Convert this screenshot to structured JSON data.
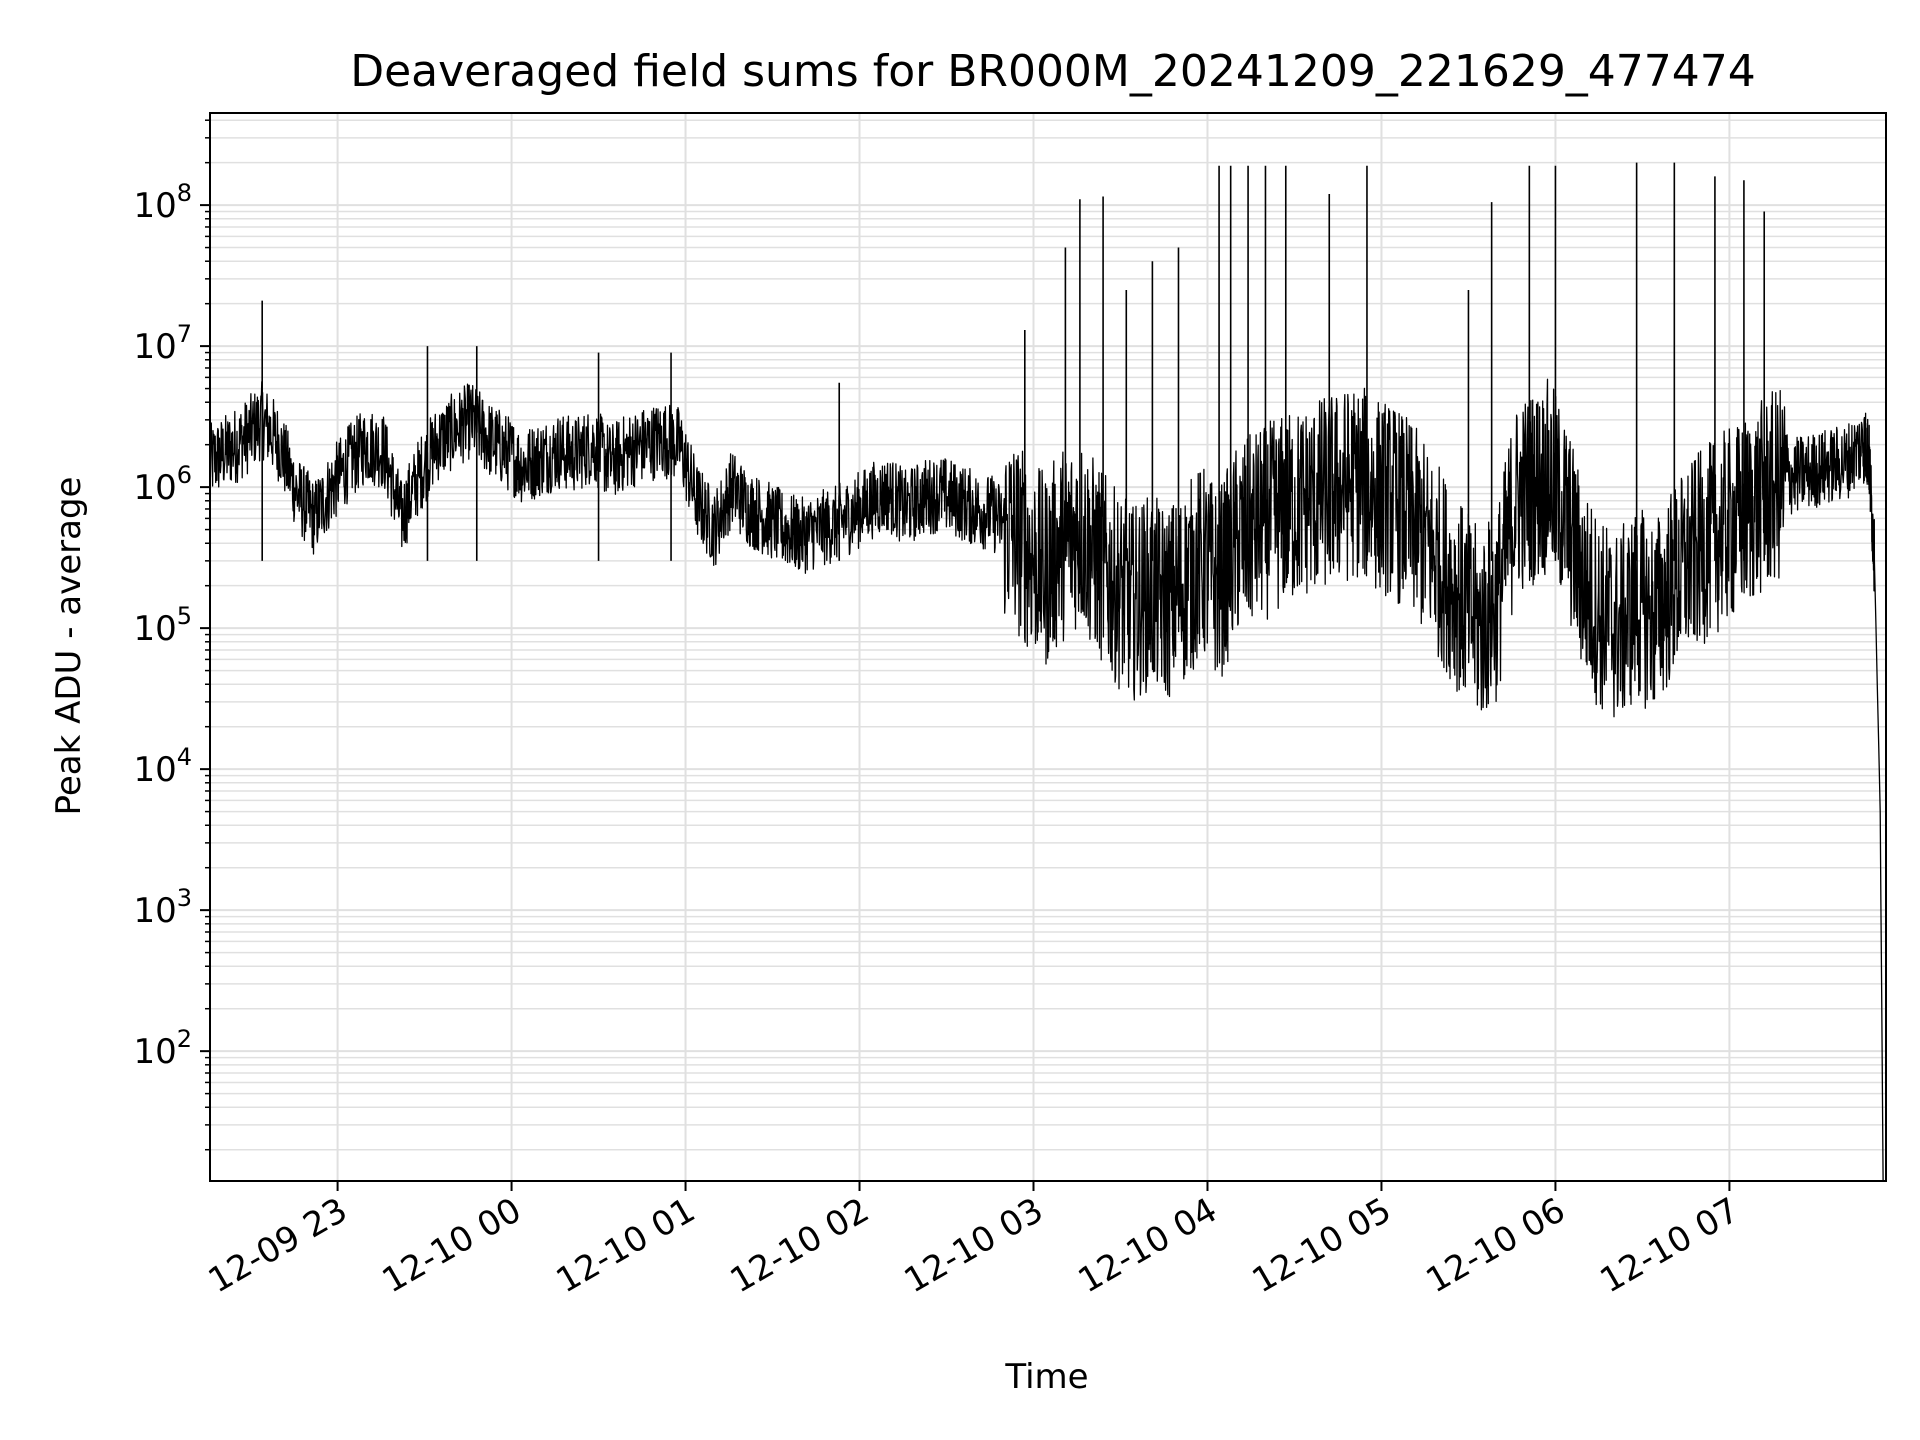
{
  "chart_data": {
    "type": "line",
    "title": "Deaveraged field sums for BR000M_20241209_221629_477474",
    "xlabel": "Time",
    "ylabel": "Peak ADU - average",
    "yscale": "log",
    "ylim": [
      12,
      450000000
    ],
    "xlim": [
      "2024-12-09 22:16",
      "2024-12-10 07:54"
    ],
    "grid": true,
    "line_color": "#000000",
    "grid_color": "#e0e0e0",
    "x_ticks": [
      {
        "time": "2024-12-09 23:00",
        "label": "12-09 23"
      },
      {
        "time": "2024-12-10 00:00",
        "label": "12-10 00"
      },
      {
        "time": "2024-12-10 01:00",
        "label": "12-10 01"
      },
      {
        "time": "2024-12-10 02:00",
        "label": "12-10 02"
      },
      {
        "time": "2024-12-10 03:00",
        "label": "12-10 03"
      },
      {
        "time": "2024-12-10 04:00",
        "label": "12-10 04"
      },
      {
        "time": "2024-12-10 05:00",
        "label": "12-10 05"
      },
      {
        "time": "2024-12-10 06:00",
        "label": "12-10 06"
      },
      {
        "time": "2024-12-10 07:00",
        "label": "12-10 07"
      }
    ],
    "y_ticks": [
      {
        "value": 100,
        "base": "10",
        "exp": "2"
      },
      {
        "value": 1000,
        "base": "10",
        "exp": "3"
      },
      {
        "value": 10000,
        "base": "10",
        "exp": "4"
      },
      {
        "value": 100000,
        "base": "10",
        "exp": "5"
      },
      {
        "value": 1000000,
        "base": "10",
        "exp": "6"
      },
      {
        "value": 10000000,
        "base": "10",
        "exp": "7"
      },
      {
        "value": 100000000,
        "base": "10",
        "exp": "8"
      }
    ],
    "series": [
      {
        "x": [
          "2024-12-09 22:16",
          "2024-12-09 22:22",
          "2024-12-09 22:28",
          "2024-12-09 22:34",
          "2024-12-09 22:40",
          "2024-12-09 22:46",
          "2024-12-09 22:52",
          "2024-12-09 22:58",
          "2024-12-09 23:04",
          "2024-12-09 23:10",
          "2024-12-09 23:16",
          "2024-12-09 23:22",
          "2024-12-09 23:28",
          "2024-12-09 23:34",
          "2024-12-09 23:40",
          "2024-12-09 23:46",
          "2024-12-09 23:52",
          "2024-12-09 23:58",
          "2024-12-10 00:04",
          "2024-12-10 00:10",
          "2024-12-10 00:16",
          "2024-12-10 00:22",
          "2024-12-10 00:28",
          "2024-12-10 00:34",
          "2024-12-10 00:40",
          "2024-12-10 00:46",
          "2024-12-10 00:52",
          "2024-12-10 00:58",
          "2024-12-10 01:04",
          "2024-12-10 01:10",
          "2024-12-10 01:16",
          "2024-12-10 01:22",
          "2024-12-10 01:28",
          "2024-12-10 01:34",
          "2024-12-10 01:40",
          "2024-12-10 01:46",
          "2024-12-10 01:52",
          "2024-12-10 01:58",
          "2024-12-10 02:04",
          "2024-12-10 02:10",
          "2024-12-10 02:16",
          "2024-12-10 02:22",
          "2024-12-10 02:28",
          "2024-12-10 02:34",
          "2024-12-10 02:40",
          "2024-12-10 02:46",
          "2024-12-10 02:52",
          "2024-12-10 02:58",
          "2024-12-10 03:04",
          "2024-12-10 03:10",
          "2024-12-10 03:16",
          "2024-12-10 03:22",
          "2024-12-10 03:28",
          "2024-12-10 03:34",
          "2024-12-10 03:40",
          "2024-12-10 03:46",
          "2024-12-10 03:52",
          "2024-12-10 03:58",
          "2024-12-10 04:04",
          "2024-12-10 04:10",
          "2024-12-10 04:16",
          "2024-12-10 04:22",
          "2024-12-10 04:28",
          "2024-12-10 04:34",
          "2024-12-10 04:40",
          "2024-12-10 04:46",
          "2024-12-10 04:52",
          "2024-12-10 04:58",
          "2024-12-10 05:04",
          "2024-12-10 05:10",
          "2024-12-10 05:16",
          "2024-12-10 05:22",
          "2024-12-10 05:28",
          "2024-12-10 05:34",
          "2024-12-10 05:40",
          "2024-12-10 05:46",
          "2024-12-10 05:52",
          "2024-12-10 05:58",
          "2024-12-10 06:04",
          "2024-12-10 06:10",
          "2024-12-10 06:16",
          "2024-12-10 06:22",
          "2024-12-10 06:28",
          "2024-12-10 06:34",
          "2024-12-10 06:40",
          "2024-12-10 06:46",
          "2024-12-10 06:52",
          "2024-12-10 06:58",
          "2024-12-10 07:04",
          "2024-12-10 07:10",
          "2024-12-10 07:16",
          "2024-12-10 07:22",
          "2024-12-10 07:28",
          "2024-12-10 07:34",
          "2024-12-10 07:40",
          "2024-12-10 07:46",
          "2024-12-10 07:48",
          "2024-12-10 07:50",
          "2024-12-10 07:52",
          "2024-12-10 07:53"
        ],
        "y": [
          1500000,
          1800000,
          2200000,
          3000000,
          2000000,
          900000,
          600000,
          1000000,
          1500000,
          2000000,
          1800000,
          600000,
          1200000,
          2000000,
          2500000,
          3000000,
          2200000,
          1800000,
          1400000,
          1600000,
          1800000,
          1700000,
          2000000,
          1500000,
          1800000,
          2000000,
          2200000,
          2000000,
          800000,
          500000,
          1000000,
          700000,
          600000,
          500000,
          450000,
          500000,
          550000,
          650000,
          800000,
          900000,
          700000,
          850000,
          900000,
          800000,
          700000,
          650000,
          500000,
          350000,
          250000,
          400000,
          500000,
          300000,
          200000,
          150000,
          180000,
          150000,
          200000,
          300000,
          200000,
          400000,
          500000,
          600000,
          700000,
          800000,
          900000,
          1000000,
          1100000,
          900000,
          800000,
          600000,
          400000,
          250000,
          150000,
          100000,
          150000,
          800000,
          1000000,
          1200000,
          600000,
          200000,
          120000,
          100000,
          150000,
          120000,
          200000,
          300000,
          400000,
          500000,
          600000,
          800000,
          1000000,
          1200000,
          1300000,
          1400000,
          1500000,
          2000000,
          1800000,
          300000,
          5000,
          12
        ]
      }
    ],
    "spikes": [
      {
        "time": "2024-12-09 22:34",
        "value": 21000000
      },
      {
        "time": "2024-12-09 23:31",
        "value": 10000000
      },
      {
        "time": "2024-12-09 23:48",
        "value": 10000000
      },
      {
        "time": "2024-12-10 00:30",
        "value": 9000000
      },
      {
        "time": "2024-12-10 00:55",
        "value": 9000000
      },
      {
        "time": "2024-12-10 01:53",
        "value": 5500000
      },
      {
        "time": "2024-12-10 02:57",
        "value": 13000000
      },
      {
        "time": "2024-12-10 03:11",
        "value": 50000000
      },
      {
        "time": "2024-12-10 03:16",
        "value": 110000000
      },
      {
        "time": "2024-12-10 03:24",
        "value": 115000000
      },
      {
        "time": "2024-12-10 03:32",
        "value": 25000000
      },
      {
        "time": "2024-12-10 03:41",
        "value": 40000000
      },
      {
        "time": "2024-12-10 03:50",
        "value": 50000000
      },
      {
        "time": "2024-12-10 04:04",
        "value": 190000000
      },
      {
        "time": "2024-12-10 04:08",
        "value": 190000000
      },
      {
        "time": "2024-12-10 04:14",
        "value": 190000000
      },
      {
        "time": "2024-12-10 04:20",
        "value": 190000000
      },
      {
        "time": "2024-12-10 04:27",
        "value": 190000000
      },
      {
        "time": "2024-12-10 04:42",
        "value": 120000000
      },
      {
        "time": "2024-12-10 04:55",
        "value": 190000000
      },
      {
        "time": "2024-12-10 05:30",
        "value": 25000000
      },
      {
        "time": "2024-12-10 05:38",
        "value": 105000000
      },
      {
        "time": "2024-12-10 05:51",
        "value": 190000000
      },
      {
        "time": "2024-12-10 06:00",
        "value": 190000000
      },
      {
        "time": "2024-12-10 06:28",
        "value": 200000000
      },
      {
        "time": "2024-12-10 06:41",
        "value": 200000000
      },
      {
        "time": "2024-12-10 06:55",
        "value": 160000000
      },
      {
        "time": "2024-12-10 07:05",
        "value": 150000000
      },
      {
        "time": "2024-12-10 07:12",
        "value": 90000000
      }
    ]
  }
}
